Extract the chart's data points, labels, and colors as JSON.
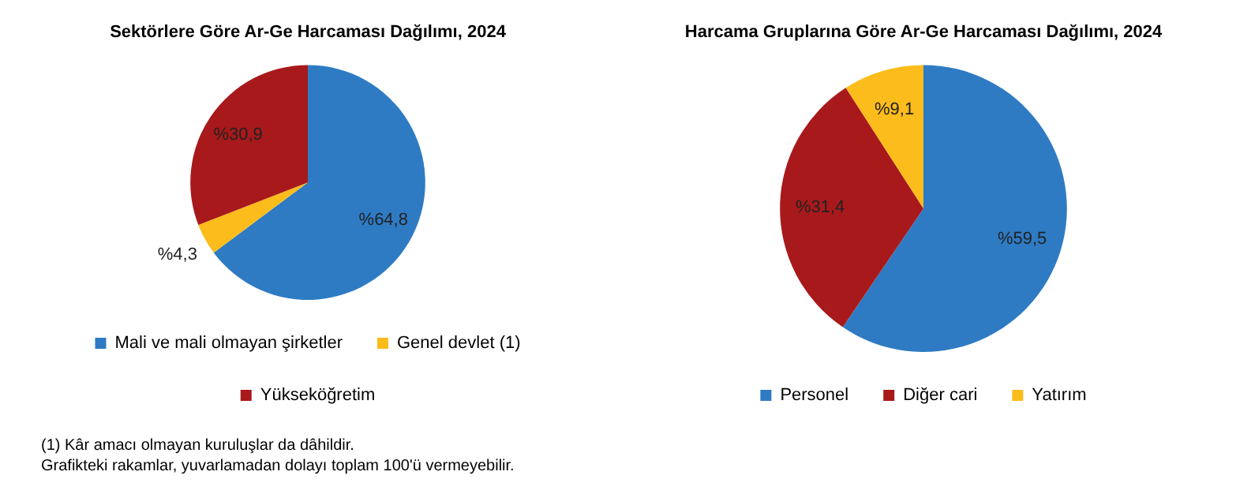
{
  "chart_data": [
    {
      "type": "pie",
      "title": "Sektörlere Göre Ar-Ge Harcaması Dağılımı, 2024",
      "categories": [
        "Mali ve mali olmayan şirketler",
        "Genel devlet (1)",
        "Yükseköğretim"
      ],
      "values": [
        64.8,
        4.3,
        30.9
      ],
      "value_labels": [
        "%64,8",
        "%4,3",
        "%30,9"
      ],
      "colors": [
        "#2e7bc4",
        "#fbbc1c",
        "#a8191b"
      ],
      "legend": "bottom",
      "annotations": [
        "(1)  Kâr amacı olmayan kuruluşlar da dâhildir.",
        "Grafikteki rakamlar, yuvarlamadan dolayı toplam 100'ü vermeyebilir."
      ]
    },
    {
      "type": "pie",
      "title": "Harcama Gruplarına Göre Ar-Ge Harcaması Dağılımı, 2024",
      "categories": [
        "Personel",
        "Diğer cari",
        "Yatırım"
      ],
      "values": [
        59.5,
        31.4,
        9.1
      ],
      "value_labels": [
        "%59,5",
        "%31,4",
        "%9,1"
      ],
      "colors": [
        "#2e7bc4",
        "#a8191b",
        "#fbbc1c"
      ],
      "legend": "bottom"
    }
  ]
}
